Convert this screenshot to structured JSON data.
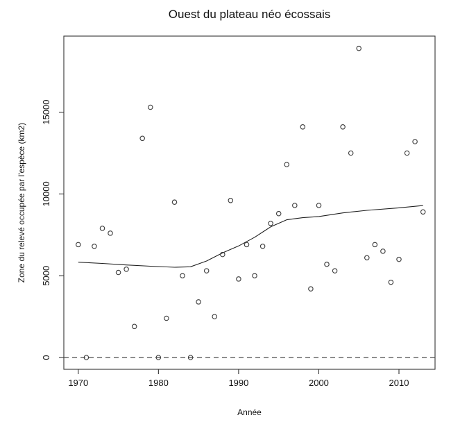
{
  "chart_data": {
    "type": "scatter",
    "title": "Ouest du plateau néo écossais",
    "xlabel": "Année",
    "ylabel": "Zone du relevé occupée par l'espèce (km2)",
    "x_ticks": [
      1970,
      1980,
      1990,
      2000,
      2010
    ],
    "y_ticks": [
      0,
      5000,
      10000,
      15000
    ],
    "xlim": [
      1968.2,
      2014.5
    ],
    "ylim": [
      -720,
      19650
    ],
    "grid": false,
    "legend": "none",
    "series": [
      {
        "name": "zone-occupee-observations",
        "marker": "open-circle",
        "x": [
          1970,
          1971,
          1972,
          1973,
          1974,
          1975,
          1976,
          1977,
          1978,
          1979,
          1980,
          1981,
          1982,
          1983,
          1984,
          1985,
          1986,
          1987,
          1988,
          1989,
          1990,
          1991,
          1992,
          1993,
          1994,
          1995,
          1996,
          1997,
          1998,
          1999,
          2000,
          2001,
          2002,
          2003,
          2004,
          2005,
          2006,
          2007,
          2008,
          2009,
          2010,
          2011,
          2012,
          2013
        ],
        "y": [
          6900,
          0,
          6800,
          7900,
          7600,
          5200,
          5400,
          1900,
          13400,
          15300,
          0,
          2400,
          9500,
          5000,
          0,
          3400,
          5300,
          2500,
          6300,
          9600,
          4800,
          6900,
          5000,
          6800,
          8200,
          8800,
          11800,
          9300,
          14100,
          4200,
          9300,
          5700,
          5300,
          14100,
          12500,
          18900,
          6100,
          6900,
          6500,
          4600,
          6000,
          12500,
          13200,
          8900
        ]
      }
    ],
    "smooth_line": {
      "name": "loess-smooth",
      "x": [
        1970,
        1973,
        1976,
        1979,
        1982,
        1984,
        1986,
        1988,
        1990,
        1992,
        1994,
        1996,
        1998,
        2000,
        2003,
        2006,
        2010,
        2013
      ],
      "y": [
        5830,
        5750,
        5660,
        5580,
        5520,
        5550,
        5900,
        6400,
        6820,
        7350,
        7990,
        8420,
        8550,
        8620,
        8840,
        9000,
        9150,
        9290
      ]
    },
    "reference_line": {
      "y": 0,
      "style": "dashed"
    },
    "colors": {
      "points": "#3f3f3f",
      "smooth_line": "#1f1f1f",
      "reference_line": "#4a4a4a",
      "frame": "#333333",
      "text": "#111111"
    }
  }
}
